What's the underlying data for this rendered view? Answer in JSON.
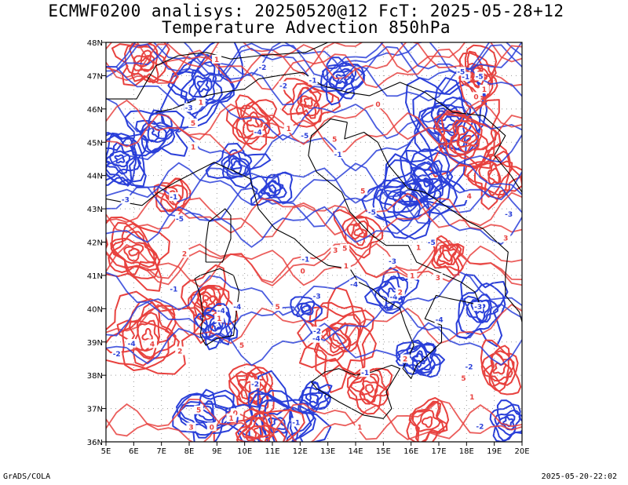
{
  "header": {
    "line1": "ECMWF0200 analisys: 20250520@12 FcT: 2025-05-28+12",
    "line2": "Temperature Advection 850hPa"
  },
  "footer": {
    "left": "GrADS/COLA",
    "right": "2025-05-20-22:02"
  },
  "map": {
    "lon_ticks": [
      "5E",
      "6E",
      "7E",
      "8E",
      "9E",
      "10E",
      "11E",
      "12E",
      "13E",
      "14E",
      "15E",
      "16E",
      "17E",
      "18E",
      "19E",
      "20E"
    ],
    "lat_ticks": [
      "48N",
      "47N",
      "46N",
      "45N",
      "44N",
      "43N",
      "42N",
      "41N",
      "40N",
      "39N",
      "38N",
      "37N",
      "36N"
    ],
    "lon_range": [
      5,
      20
    ],
    "lat_range": [
      36,
      48
    ],
    "colors": {
      "warm_advection": "#e8413e",
      "cold_advection": "#2a3fd9",
      "coastline": "#000000",
      "grid": "#9a9a9a"
    },
    "contour_labels_sample": [
      "-1",
      "-2",
      "-3",
      "-4",
      "-5",
      "0",
      "1",
      "2",
      "3",
      "4",
      "5"
    ]
  }
}
